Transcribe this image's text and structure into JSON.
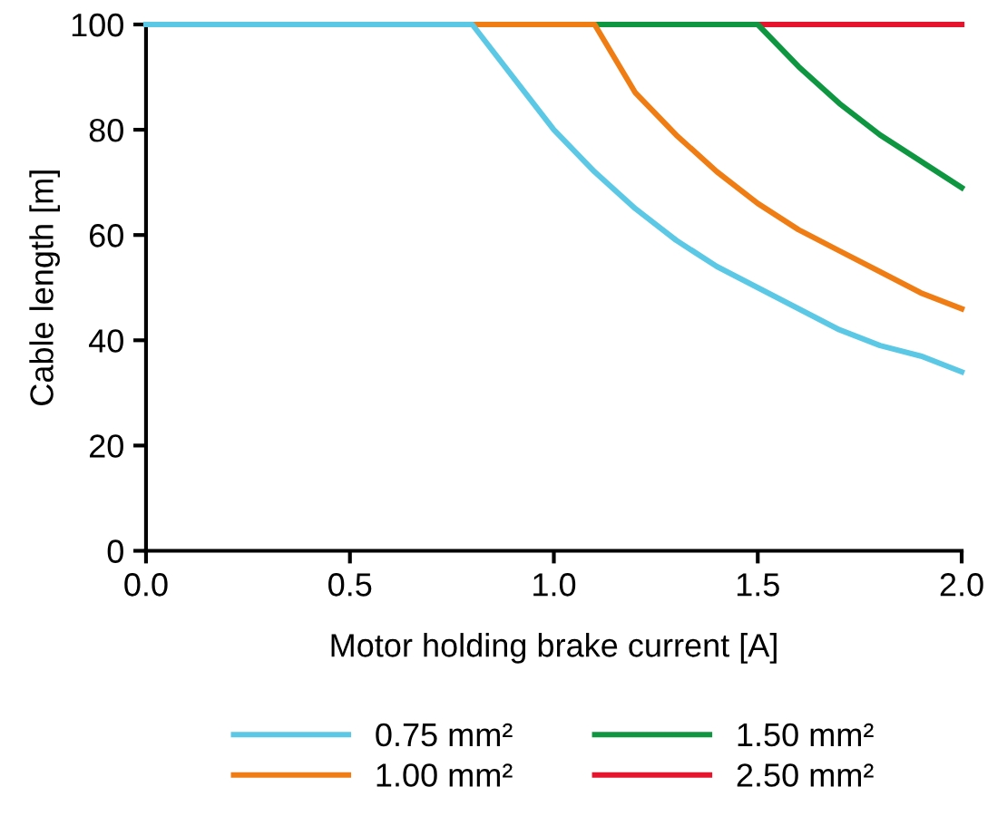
{
  "chart_data": {
    "type": "line",
    "xlabel": "Motor holding brake current [A]",
    "ylabel": "Cable length [m]",
    "xlim": [
      0,
      2
    ],
    "xticks": [
      {
        "value": 0,
        "label": "0.0"
      },
      {
        "value": 0.5,
        "label": "0.5"
      },
      {
        "value": 1,
        "label": "1.0"
      },
      {
        "value": 1.5,
        "label": "1.5"
      },
      {
        "value": 2,
        "label": "2.0"
      }
    ],
    "ylim": [
      0,
      100
    ],
    "yticks": [
      0,
      20,
      40,
      60,
      80,
      100
    ],
    "grid": false,
    "legend": "bottom",
    "marker": "none",
    "line_style": "solid",
    "series": [
      {
        "name": "0.75 mm²",
        "color": "#5bc8e6",
        "x": [
          0,
          0.8,
          0.9,
          1.0,
          1.1,
          1.2,
          1.3,
          1.4,
          1.5,
          1.6,
          1.7,
          1.8,
          1.9,
          2.0
        ],
        "values": [
          100,
          100,
          90,
          80,
          72,
          65,
          59,
          54,
          50,
          46,
          42,
          39,
          37,
          34
        ]
      },
      {
        "name": "1.00 mm²",
        "color": "#f07d14",
        "x": [
          0.8,
          1.1,
          1.2,
          1.3,
          1.4,
          1.5,
          1.6,
          1.7,
          1.8,
          1.9,
          2.0
        ],
        "values": [
          100,
          100,
          87,
          79,
          72,
          66,
          61,
          57,
          53,
          49,
          46
        ]
      },
      {
        "name": "1.50 mm²",
        "color": "#0f9641",
        "x": [
          1.1,
          1.5,
          1.6,
          1.7,
          1.8,
          1.9,
          2.0
        ],
        "values": [
          100,
          100,
          92,
          85,
          79,
          74,
          69
        ]
      },
      {
        "name": "2.50 mm²",
        "color": "#e6142d",
        "x": [
          1.5,
          2.0
        ],
        "values": [
          100,
          100
        ]
      }
    ]
  }
}
